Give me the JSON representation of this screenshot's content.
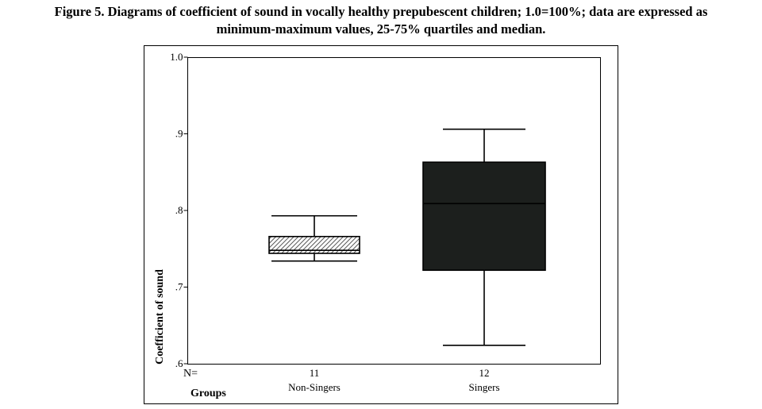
{
  "caption": {
    "line1": "Figure 5. Diagrams of coefficient of sound in vocally healthy prepubescent children; 1.0=100%; data are expressed as",
    "line2": "minimum-maximum values, 25-75% quartiles and median."
  },
  "chart_data": {
    "type": "boxplot",
    "ylabel": "Coefficient of sound",
    "xlabel": "Groups",
    "n_label": "N=",
    "ylim": [
      0.6,
      1.0
    ],
    "yticks": [
      {
        "value": 1.0,
        "label": "1.0"
      },
      {
        "value": 0.9,
        "label": ".9"
      },
      {
        "value": 0.8,
        "label": ".8"
      },
      {
        "value": 0.7,
        "label": ".7"
      },
      {
        "value": 0.6,
        "label": ".6"
      }
    ],
    "grid": false,
    "groups": [
      {
        "name": "Non-Singers",
        "n": "11",
        "min": 0.734,
        "q1": 0.744,
        "median": 0.748,
        "q3": 0.766,
        "max": 0.793,
        "fill": "hatched",
        "color": "#cccccc"
      },
      {
        "name": "Singers",
        "n": "12",
        "min": 0.624,
        "q1": 0.722,
        "median": 0.809,
        "q3": 0.863,
        "max": 0.906,
        "fill": "solid",
        "color": "#1c1f1d"
      }
    ]
  }
}
